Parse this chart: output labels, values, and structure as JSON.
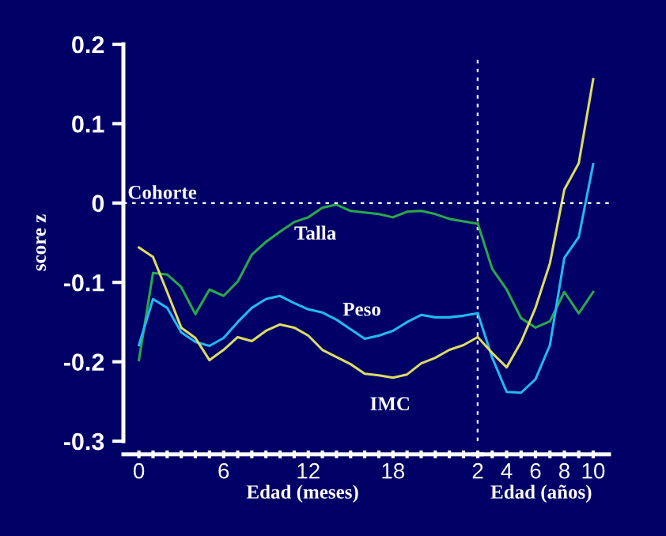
{
  "chart_data": [
    {
      "type": "line",
      "ylabel": "score z",
      "xlabel": "Edad (meses)",
      "x": [
        0,
        1,
        2,
        3,
        4,
        5,
        6,
        7,
        8,
        9,
        10,
        11,
        12,
        13,
        14,
        15,
        16,
        17,
        18,
        19,
        20,
        21,
        22,
        23,
        24
      ],
      "series": [
        {
          "name": "Talla",
          "color": "#2aa84a",
          "values": [
            -0.198,
            -0.088,
            -0.09,
            -0.106,
            -0.14,
            -0.109,
            -0.117,
            -0.099,
            -0.065,
            -0.049,
            -0.036,
            -0.024,
            -0.018,
            -0.006,
            -0.002,
            -0.01,
            -0.012,
            -0.014,
            -0.018,
            -0.011,
            -0.01,
            -0.014,
            -0.02,
            -0.023,
            -0.026
          ]
        },
        {
          "name": "Peso",
          "color": "#22b8f0",
          "values": [
            -0.179,
            -0.121,
            -0.132,
            -0.163,
            -0.175,
            -0.18,
            -0.17,
            -0.15,
            -0.132,
            -0.121,
            -0.117,
            -0.126,
            -0.134,
            -0.138,
            -0.147,
            -0.159,
            -0.171,
            -0.167,
            -0.161,
            -0.15,
            -0.141,
            -0.144,
            -0.144,
            -0.142,
            -0.139
          ]
        },
        {
          "name": "IMC",
          "color": "#dcdc64",
          "values": [
            -0.056,
            -0.068,
            -0.112,
            -0.157,
            -0.17,
            -0.198,
            -0.185,
            -0.169,
            -0.174,
            -0.161,
            -0.153,
            -0.157,
            -0.167,
            -0.185,
            -0.194,
            -0.203,
            -0.215,
            -0.217,
            -0.22,
            -0.216,
            -0.202,
            -0.195,
            -0.185,
            -0.179,
            -0.169
          ]
        }
      ],
      "xlim": [
        -1.1,
        24.3
      ],
      "xticks": [
        0,
        {
          "value": 1,
          "label": null
        },
        {
          "value": 2,
          "label": null
        },
        {
          "value": 3,
          "label": null
        },
        {
          "value": 4,
          "label": null
        },
        {
          "value": 5,
          "label": null
        },
        6,
        {
          "value": 7,
          "label": null
        },
        {
          "value": 8,
          "label": null
        },
        {
          "value": 9,
          "label": null
        },
        {
          "value": 10,
          "label": null
        },
        {
          "value": 11,
          "label": null
        },
        12,
        {
          "value": 13,
          "label": null
        },
        {
          "value": 14,
          "label": null
        },
        {
          "value": 15,
          "label": null
        },
        {
          "value": 16,
          "label": null
        },
        {
          "value": 17,
          "label": null
        },
        18,
        {
          "value": 19,
          "label": null
        },
        {
          "value": 20,
          "label": null
        },
        {
          "value": 21,
          "label": null
        },
        {
          "value": 22,
          "label": null
        },
        {
          "value": 23,
          "label": null
        }
      ],
      "ylim": [
        -0.3,
        0.2
      ],
      "yticks": [
        -0.3,
        -0.2,
        -0.1,
        0,
        0.1,
        0.2
      ],
      "ref_lines": [
        {
          "axis": "y",
          "value": 0,
          "label": "Cohorte",
          "color": "#ffffff",
          "line_style": "dotted"
        },
        {
          "axis": "x",
          "value": 24,
          "color": "#ffffff",
          "line_style": "dotted"
        }
      ],
      "grid": false,
      "legend": false,
      "marker": "none",
      "line_style": "solid"
    },
    {
      "type": "line",
      "xlabel": "Edad (años)",
      "x": [
        2,
        3,
        4,
        5,
        6,
        7,
        8,
        9,
        10
      ],
      "series": [
        {
          "color": "#2aa84a",
          "values": [
            -0.026,
            -0.083,
            -0.109,
            -0.145,
            -0.157,
            -0.149,
            -0.112,
            -0.139,
            -0.112
          ]
        },
        {
          "color": "#22b8f0",
          "values": [
            -0.139,
            -0.195,
            -0.238,
            -0.239,
            -0.222,
            -0.179,
            -0.069,
            -0.043,
            0.049
          ]
        },
        {
          "color": "#dcdc64",
          "values": [
            -0.169,
            -0.189,
            -0.207,
            -0.175,
            -0.132,
            -0.076,
            0.017,
            0.05,
            0.156
          ]
        }
      ],
      "xlim": [
        1.7,
        11.1
      ],
      "xticks": [
        2,
        {
          "value": 3,
          "label": null
        },
        4,
        {
          "value": 5,
          "label": null
        },
        6,
        {
          "value": 7,
          "label": null
        },
        8,
        {
          "value": 9,
          "label": null
        },
        10
      ],
      "ylim": [
        -0.3,
        0.2
      ],
      "ref_lines": [
        {
          "axis": "y",
          "value": 0,
          "color": "#ffffff",
          "line_style": "dotted"
        }
      ],
      "tick_labels": "x",
      "grid": false,
      "legend": false,
      "marker": "none",
      "line_style": "solid"
    }
  ]
}
